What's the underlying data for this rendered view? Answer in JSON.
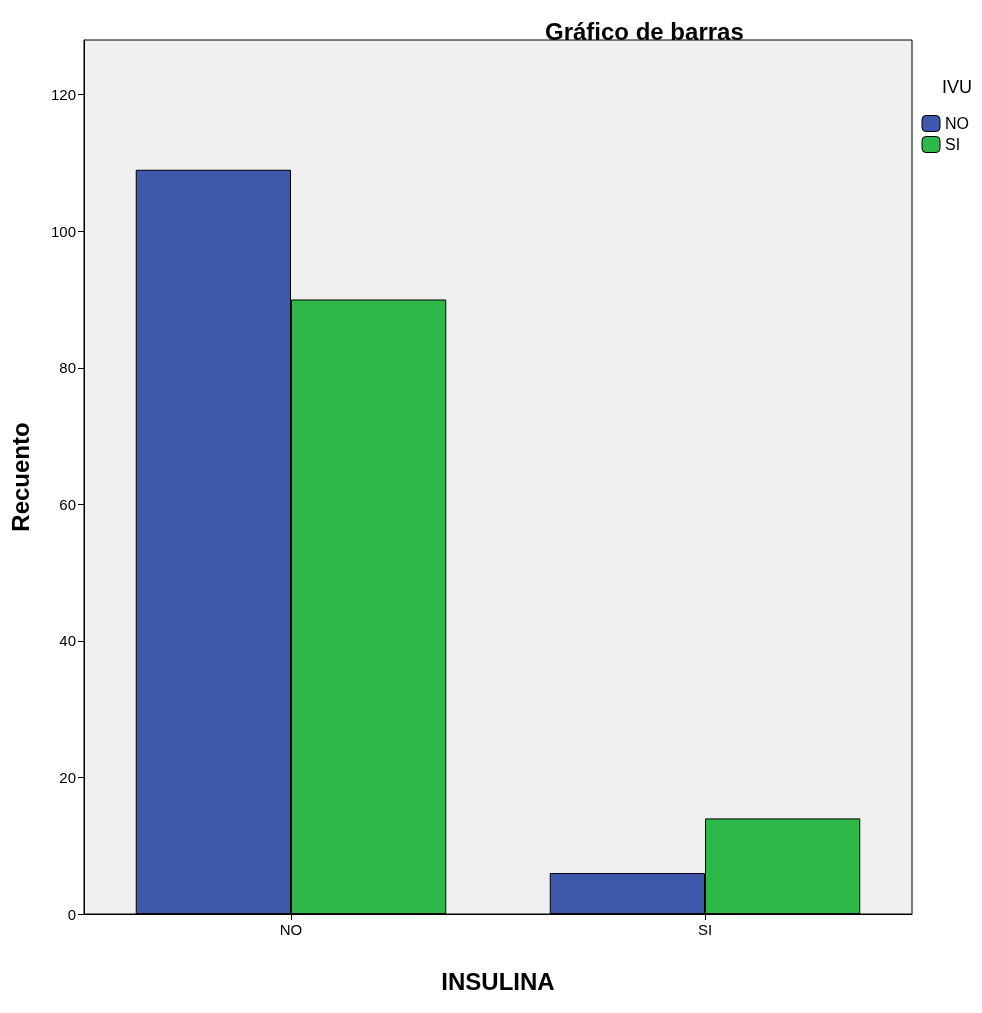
{
  "chart_data": {
    "type": "bar",
    "title": "Gráfico de barras",
    "xlabel": "INSULINA",
    "ylabel": "Recuento",
    "legend_title": "IVU",
    "categories": [
      "NO",
      "SI"
    ],
    "series": [
      {
        "name": "NO",
        "color": "#3e58ac",
        "values": [
          109,
          6
        ]
      },
      {
        "name": "SI",
        "color": "#2eb84a",
        "values": [
          90,
          14
        ]
      }
    ],
    "ylim": [
      0,
      128
    ],
    "yticks": [
      0,
      20,
      40,
      60,
      80,
      100,
      120
    ],
    "grid": false,
    "legend": "top right"
  }
}
